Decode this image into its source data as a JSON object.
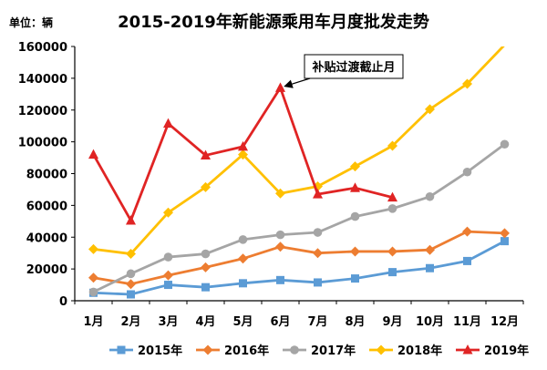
{
  "chart_data": {
    "type": "line",
    "title": "2015-2019年新能源乘用车月度批发走势",
    "unit_label": "单位：辆",
    "categories": [
      "1月",
      "2月",
      "3月",
      "4月",
      "5月",
      "6月",
      "7月",
      "8月",
      "9月",
      "10月",
      "11月",
      "12月"
    ],
    "y_ticks": [
      "0",
      "20000",
      "40000",
      "60000",
      "80000",
      "100000",
      "120000",
      "140000",
      "160000"
    ],
    "ylim": [
      0,
      160000
    ],
    "grid": false,
    "legend": "bottom",
    "series": [
      {
        "name": "2015年",
        "color": "#5B9BD5",
        "marker": "square",
        "values": [
          5000,
          4000,
          10000,
          8500,
          11000,
          13000,
          11500,
          14000,
          18000,
          20500,
          25000,
          37500
        ]
      },
      {
        "name": "2016年",
        "color": "#ED7D31",
        "marker": "diamond",
        "values": [
          14500,
          10500,
          16000,
          21000,
          26500,
          34000,
          30000,
          31000,
          31000,
          32000,
          43500,
          42500
        ]
      },
      {
        "name": "2017年",
        "color": "#A5A5A5",
        "marker": "circle",
        "values": [
          5500,
          17000,
          27500,
          29500,
          38500,
          41500,
          43000,
          53000,
          58000,
          65500,
          81000,
          98500
        ]
      },
      {
        "name": "2018年",
        "color": "#FFC000",
        "marker": "diamond",
        "values": [
          32500,
          29500,
          55500,
          71500,
          92000,
          67500,
          72000,
          84500,
          97500,
          120500,
          136500,
          161000
        ]
      },
      {
        "name": "2019年",
        "color": "#E02424",
        "marker": "triangle",
        "values": [
          92000,
          50500,
          111500,
          91500,
          97000,
          134000,
          67000,
          71000,
          65000,
          null,
          null,
          null
        ]
      }
    ],
    "annotation": {
      "text": "补贴过渡截止月",
      "category_index": 5,
      "value": 134000
    }
  }
}
